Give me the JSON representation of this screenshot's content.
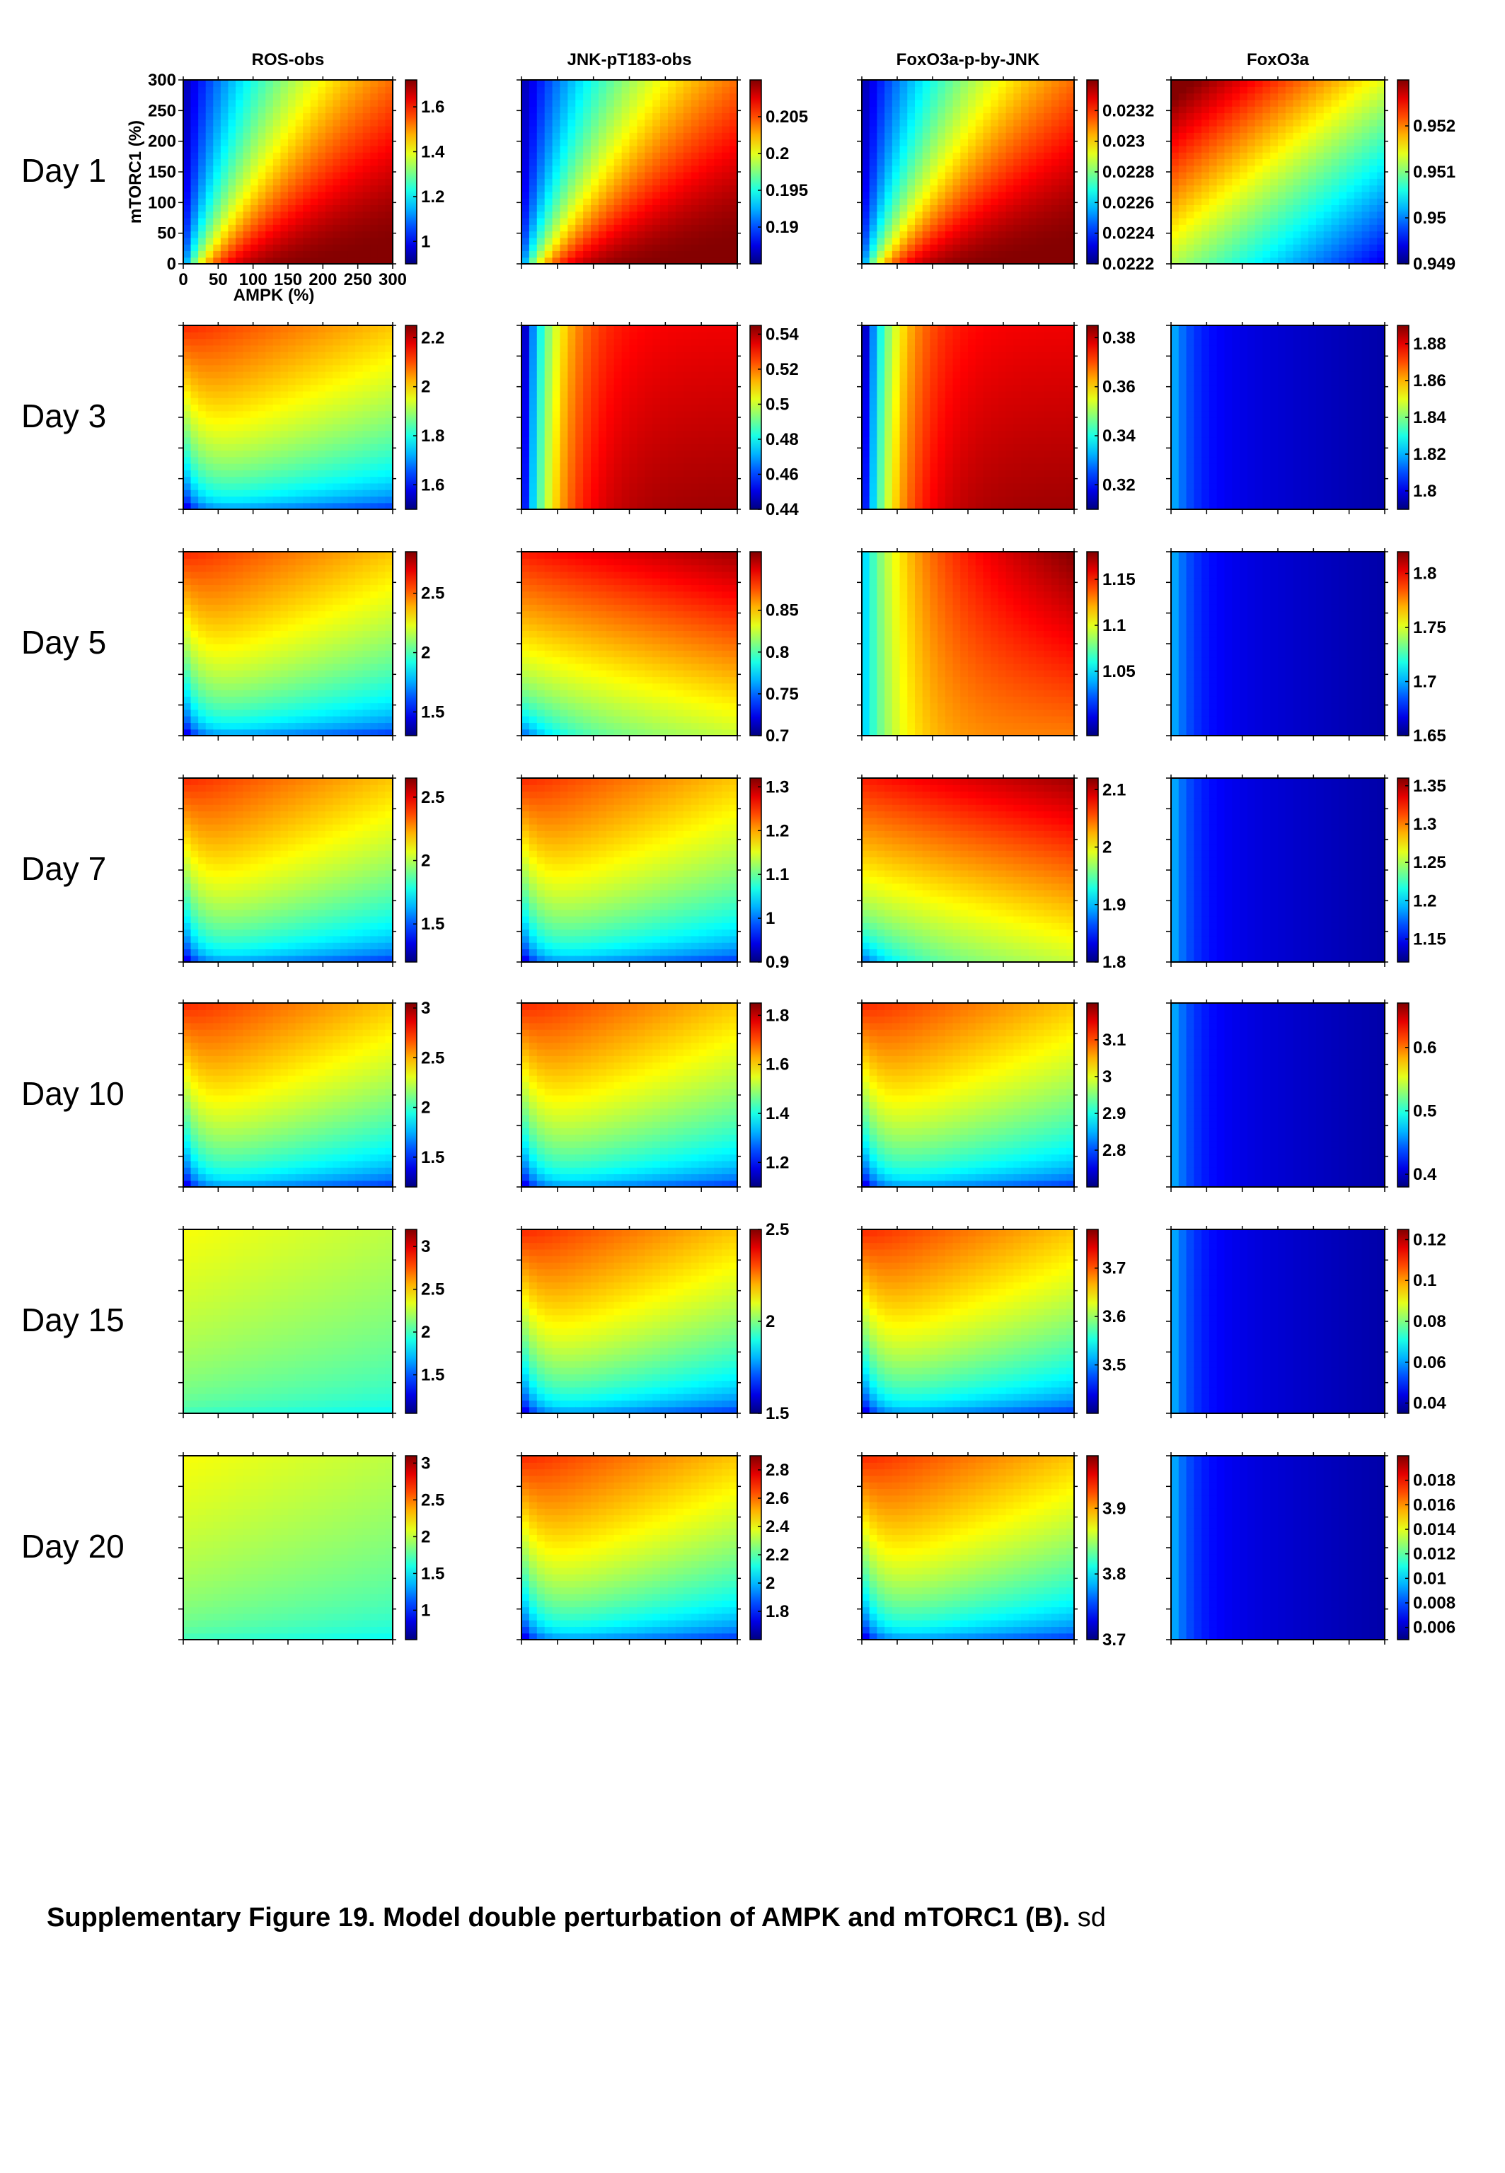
{
  "caption": {
    "bold": "Supplementary Figure 19. Model double perturbation of AMPK and mTORC1 (B).",
    "rest": " sd"
  },
  "columns": [
    "ROS-obs",
    "JNK-pT183-obs",
    "FoxO3a-p-by-JNK",
    "FoxO3a"
  ],
  "rows": [
    "Day 1",
    "Day 3",
    "Day 5",
    "Day 7",
    "Day 10",
    "Day 15",
    "Day 20"
  ],
  "colormap": "jet",
  "chart_data": {
    "type": "heatmap",
    "xlabel": "AMPK (%)",
    "ylabel": "mTORC1 (%)",
    "xlim": [
      0,
      300
    ],
    "ylim": [
      0,
      300
    ],
    "xticks": [
      0,
      50,
      100,
      150,
      200,
      250,
      300
    ],
    "yticks": [
      0,
      50,
      100,
      150,
      200,
      250,
      300
    ],
    "panels": [
      [
        {
          "pattern": "ratio",
          "range": [
            0.9,
            1.72
          ],
          "colorbar_ticks": [
            "1",
            "1.2",
            "1.4",
            "1.6"
          ]
        },
        {
          "pattern": "ratio",
          "range": [
            0.185,
            0.21
          ],
          "colorbar_ticks": [
            "0.19",
            "0.195",
            "0.2",
            "0.205"
          ]
        },
        {
          "pattern": "ratio",
          "range": [
            0.0222,
            0.0234
          ],
          "colorbar_ticks": [
            "0.0222",
            "0.0224",
            "0.0226",
            "0.0228",
            "0.023",
            "0.0232"
          ]
        },
        {
          "pattern": "foxday1",
          "range": [
            0.949,
            0.953
          ],
          "colorbar_ticks": [
            "0.949",
            "0.95",
            "0.951",
            "0.952"
          ]
        }
      ],
      [
        {
          "pattern": "ybands",
          "range": [
            1.5,
            2.25
          ],
          "colorbar_ticks": [
            "1.6",
            "1.8",
            "2",
            "2.2"
          ]
        },
        {
          "pattern": "xrise",
          "range": [
            0.44,
            0.545
          ],
          "colorbar_ticks": [
            "0.44",
            "0.46",
            "0.48",
            "0.5",
            "0.52",
            "0.54"
          ]
        },
        {
          "pattern": "xrise",
          "range": [
            0.31,
            0.385
          ],
          "colorbar_ticks": [
            "0.32",
            "0.34",
            "0.36",
            "0.38"
          ]
        },
        {
          "pattern": "foxlow",
          "range": [
            1.79,
            1.89
          ],
          "colorbar_ticks": [
            "1.8",
            "1.82",
            "1.84",
            "1.86",
            "1.88"
          ]
        }
      ],
      [
        {
          "pattern": "ybands",
          "range": [
            1.3,
            2.85
          ],
          "colorbar_ticks": [
            "1.5",
            "2",
            "2.5"
          ]
        },
        {
          "pattern": "ydiag",
          "range": [
            0.7,
            0.92
          ],
          "colorbar_ticks": [
            "0.7",
            "0.75",
            "0.8",
            "0.85"
          ]
        },
        {
          "pattern": "xrise2",
          "range": [
            0.98,
            1.18
          ],
          "colorbar_ticks": [
            "1.05",
            "1.1",
            "1.15"
          ]
        },
        {
          "pattern": "foxlow",
          "range": [
            1.65,
            1.82
          ],
          "colorbar_ticks": [
            "1.65",
            "1.7",
            "1.75",
            "1.8"
          ]
        }
      ],
      [
        {
          "pattern": "ybands",
          "range": [
            1.2,
            2.65
          ],
          "colorbar_ticks": [
            "1.5",
            "2",
            "2.5"
          ]
        },
        {
          "pattern": "ybands",
          "range": [
            0.9,
            1.32
          ],
          "colorbar_ticks": [
            "0.9",
            "1",
            "1.1",
            "1.2",
            "1.3"
          ]
        },
        {
          "pattern": "ydiag",
          "range": [
            1.8,
            2.12
          ],
          "colorbar_ticks": [
            "1.8",
            "1.9",
            "2",
            "2.1"
          ]
        },
        {
          "pattern": "foxlow",
          "range": [
            1.12,
            1.36
          ],
          "colorbar_ticks": [
            "1.15",
            "1.2",
            "1.25",
            "1.3",
            "1.35"
          ]
        }
      ],
      [
        {
          "pattern": "ybands",
          "range": [
            1.2,
            3.05
          ],
          "colorbar_ticks": [
            "1.5",
            "2",
            "2.5",
            "3"
          ]
        },
        {
          "pattern": "ybands",
          "range": [
            1.1,
            1.85
          ],
          "colorbar_ticks": [
            "1.2",
            "1.4",
            "1.6",
            "1.8"
          ]
        },
        {
          "pattern": "ybands",
          "range": [
            2.7,
            3.2
          ],
          "colorbar_ticks": [
            "2.8",
            "2.9",
            "3",
            "3.1"
          ]
        },
        {
          "pattern": "foxlow",
          "range": [
            0.38,
            0.67
          ],
          "colorbar_ticks": [
            "0.4",
            "0.5",
            "0.6"
          ]
        }
      ],
      [
        {
          "pattern": "yflat",
          "range": [
            1.05,
            3.2
          ],
          "colorbar_ticks": [
            "1.5",
            "2",
            "2.5",
            "3"
          ]
        },
        {
          "pattern": "ybands",
          "range": [
            1.5,
            2.5
          ],
          "colorbar_ticks": [
            "1.5",
            "2",
            "2.5"
          ]
        },
        {
          "pattern": "ybands",
          "range": [
            3.4,
            3.78
          ],
          "colorbar_ticks": [
            "3.5",
            "3.6",
            "3.7"
          ]
        },
        {
          "pattern": "foxlow",
          "range": [
            0.035,
            0.125
          ],
          "colorbar_ticks": [
            "0.04",
            "0.06",
            "0.08",
            "0.1",
            "0.12"
          ]
        }
      ],
      [
        {
          "pattern": "yflat",
          "range": [
            0.6,
            3.1
          ],
          "colorbar_ticks": [
            "1",
            "1.5",
            "2",
            "2.5",
            "3"
          ]
        },
        {
          "pattern": "ybands",
          "range": [
            1.6,
            2.9
          ],
          "colorbar_ticks": [
            "1.8",
            "2",
            "2.2",
            "2.4",
            "2.6",
            "2.8"
          ]
        },
        {
          "pattern": "ybands",
          "range": [
            3.7,
            3.98
          ],
          "colorbar_ticks": [
            "3.7",
            "3.8",
            "3.9"
          ]
        },
        {
          "pattern": "foxlow",
          "range": [
            0.005,
            0.02
          ],
          "colorbar_ticks": [
            "0.006",
            "0.008",
            "0.01",
            "0.012",
            "0.014",
            "0.016",
            "0.018"
          ]
        }
      ]
    ]
  }
}
